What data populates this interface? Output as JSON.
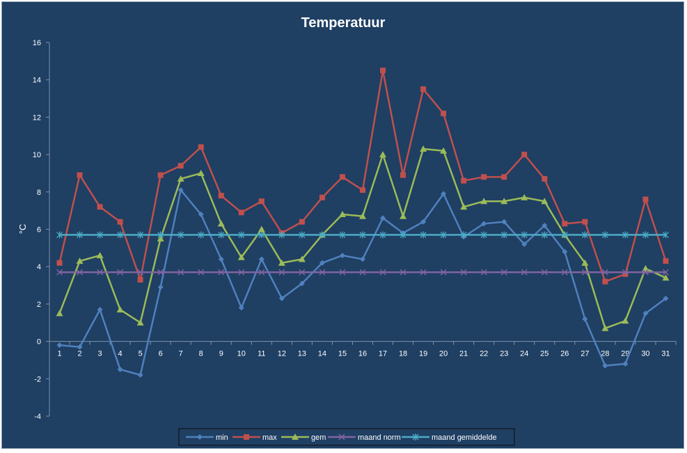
{
  "chart_data": {
    "type": "line",
    "title": "Temperatuur",
    "xlabel": "",
    "ylabel": "°C",
    "ylim": [
      -4,
      16
    ],
    "yticks": [
      -4,
      -2,
      0,
      2,
      4,
      6,
      8,
      10,
      12,
      14,
      16
    ],
    "categories": [
      "1",
      "2",
      "3",
      "4",
      "5",
      "6",
      "7",
      "8",
      "9",
      "10",
      "11",
      "12",
      "13",
      "14",
      "15",
      "16",
      "17",
      "18",
      "19",
      "20",
      "21",
      "22",
      "23",
      "24",
      "25",
      "26",
      "27",
      "28",
      "29",
      "30",
      "31"
    ],
    "grid": false,
    "legend_position": "bottom",
    "series": [
      {
        "name": "min",
        "color": "#4f81bd",
        "marker": "diamond",
        "values": [
          -0.2,
          -0.3,
          1.7,
          -1.5,
          -1.8,
          2.9,
          8.1,
          6.8,
          4.4,
          1.8,
          4.4,
          2.3,
          3.1,
          4.2,
          4.6,
          4.4,
          6.6,
          5.8,
          6.4,
          7.9,
          5.6,
          6.3,
          6.4,
          5.2,
          6.2,
          4.8,
          1.2,
          -1.3,
          -1.2,
          1.5,
          2.3
        ]
      },
      {
        "name": "max",
        "color": "#c0504d",
        "marker": "square",
        "values": [
          4.2,
          8.9,
          7.2,
          6.4,
          3.3,
          8.9,
          9.4,
          10.4,
          7.8,
          6.9,
          7.5,
          5.8,
          6.4,
          7.7,
          8.8,
          8.1,
          14.5,
          8.9,
          13.5,
          12.2,
          8.6,
          8.8,
          8.8,
          10.0,
          8.7,
          6.3,
          6.4,
          3.2,
          3.6,
          7.6,
          4.3
        ]
      },
      {
        "name": "gem",
        "color": "#9bbb59",
        "marker": "triangle",
        "values": [
          1.5,
          4.3,
          4.6,
          1.7,
          1.0,
          5.5,
          8.7,
          9.0,
          6.3,
          4.5,
          6.0,
          4.2,
          4.4,
          5.7,
          6.8,
          6.7,
          10.0,
          6.7,
          10.3,
          10.2,
          7.2,
          7.5,
          7.5,
          7.7,
          7.5,
          5.7,
          4.2,
          0.7,
          1.1,
          3.9,
          3.4
        ]
      },
      {
        "name": "maand norm",
        "color": "#8064a2",
        "marker": "x",
        "values": [
          3.7,
          3.7,
          3.7,
          3.7,
          3.7,
          3.7,
          3.7,
          3.7,
          3.7,
          3.7,
          3.7,
          3.7,
          3.7,
          3.7,
          3.7,
          3.7,
          3.7,
          3.7,
          3.7,
          3.7,
          3.7,
          3.7,
          3.7,
          3.7,
          3.7,
          3.7,
          3.7,
          3.7,
          3.7,
          3.7,
          3.7
        ]
      },
      {
        "name": "maand gemiddelde",
        "color": "#4bacc6",
        "marker": "star",
        "values": [
          5.7,
          5.7,
          5.7,
          5.7,
          5.7,
          5.7,
          5.7,
          5.7,
          5.7,
          5.7,
          5.7,
          5.7,
          5.7,
          5.7,
          5.7,
          5.7,
          5.7,
          5.7,
          5.7,
          5.7,
          5.7,
          5.7,
          5.7,
          5.7,
          5.7,
          5.7,
          5.7,
          5.7,
          5.7,
          5.7,
          5.7
        ]
      }
    ]
  }
}
